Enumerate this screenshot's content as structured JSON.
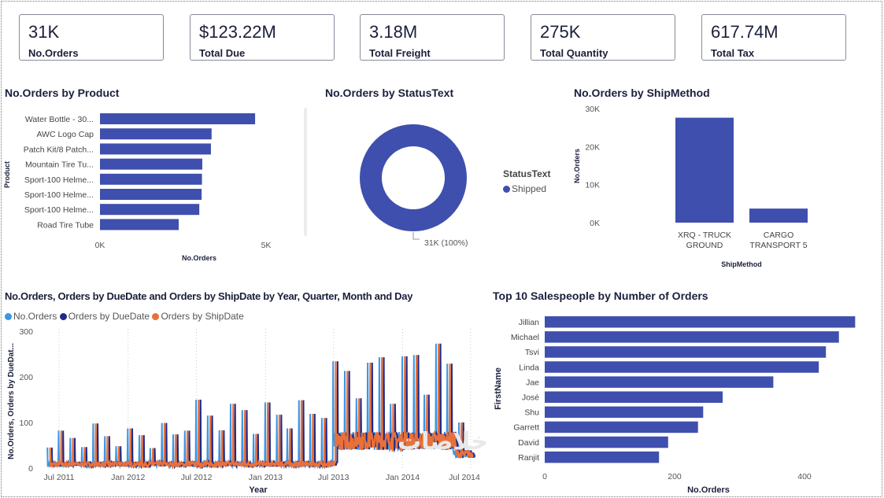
{
  "kpis": [
    {
      "value": "31K",
      "label": "No.Orders"
    },
    {
      "value": "$123.22M",
      "label": "Total Due"
    },
    {
      "value": "3.18M",
      "label": "Total Freight"
    },
    {
      "value": "275K",
      "label": "Total Quantity"
    },
    {
      "value": "617.74M",
      "label": "Total Tax"
    }
  ],
  "colors": {
    "bar": "#3f4fae",
    "no_orders": "#3a96e6",
    "due_date": "#1e2a88",
    "ship_date": "#e8703a",
    "text": "#1b1f3b"
  },
  "watermark": "خلاصات",
  "chart_data": [
    {
      "type": "bar",
      "orientation": "horizontal",
      "title": "No.Orders by Product",
      "xlabel": "No.Orders",
      "ylabel": "Product",
      "categories": [
        "Water Bottle - 30...",
        "AWC Logo Cap",
        "Patch Kit/8 Patch...",
        "Mountain Tire Tu...",
        "Sport-100 Helme...",
        "Sport-100 Helme...",
        "Sport-100 Helme...",
        "Road Tire Tube"
      ],
      "values": [
        4670,
        3360,
        3340,
        3080,
        3070,
        3060,
        2990,
        2370
      ],
      "xlim": [
        0,
        5000
      ],
      "xticks": [
        {
          "v": 0,
          "label": "0K"
        },
        {
          "v": 5000,
          "label": "5K"
        }
      ]
    },
    {
      "type": "pie",
      "donut": true,
      "title": "No.Orders by StatusText",
      "legend_title": "StatusText",
      "slices": [
        {
          "label": "Shipped",
          "value": 31000,
          "data_label": "31K (100%)"
        }
      ]
    },
    {
      "type": "bar",
      "title": "No.Orders by ShipMethod",
      "xlabel": "ShipMethod",
      "ylabel": "No.Orders",
      "categories": [
        [
          "XRQ - TRUCK",
          "GROUND"
        ],
        [
          "CARGO",
          "TRANSPORT 5"
        ]
      ],
      "values": [
        27600,
        3700
      ],
      "ylim": [
        0,
        30000
      ],
      "yticks": [
        {
          "v": 0,
          "label": "0K"
        },
        {
          "v": 10000,
          "label": "10K"
        },
        {
          "v": 20000,
          "label": "20K"
        },
        {
          "v": 30000,
          "label": "30K"
        }
      ]
    },
    {
      "type": "line",
      "title": "No.Orders, Orders by DueDate and Orders by ShipDate by Year, Quarter, Month and Day",
      "xlabel": "Year",
      "ylabel": "No.Orders, Orders by DueDat...",
      "ylim": [
        0,
        300
      ],
      "yticks": [
        0,
        100,
        200,
        300
      ],
      "xticks": [
        "Jul 2011",
        "Jan 2012",
        "Jul 2012",
        "Jan 2013",
        "Jul 2013",
        "Jan 2014",
        "Jul 2014"
      ],
      "series": [
        {
          "name": "No.Orders",
          "offset_days": 0
        },
        {
          "name": "Orders by DueDate",
          "offset_days": 12
        },
        {
          "name": "Orders by ShipDate",
          "offset_days": 7
        }
      ],
      "date_range": [
        "2011-05-31",
        "2014-06-30"
      ],
      "month_end_spikes_start": "2011-05",
      "month_end_spikes": [
        45,
        82,
        66,
        46,
        98,
        70,
        48,
        87,
        72,
        44,
        99,
        74,
        82,
        150,
        115,
        83,
        141,
        127,
        75,
        144,
        117,
        87,
        149,
        119,
        110,
        234,
        213,
        153,
        231,
        243,
        141,
        245,
        248,
        161,
        273,
        229,
        100
      ],
      "daily_baseline": [
        {
          "from": "2011-05-31",
          "to": "2013-06-29",
          "min": 3,
          "max": 14
        },
        {
          "from": "2013-06-30",
          "to": "2014-05-15",
          "min": 40,
          "max": 80
        },
        {
          "from": "2014-05-16",
          "to": "2014-06-30",
          "min": 22,
          "max": 40
        }
      ]
    },
    {
      "type": "bar",
      "orientation": "horizontal",
      "title": "Top 10 Salespeople by Number of Orders",
      "xlabel": "No.Orders",
      "ylabel": "FirstName",
      "categories": [
        "Jillian",
        "Michael",
        "Tsvi",
        "Linda",
        "Jae",
        "José",
        "Shu",
        "Garrett",
        "David",
        "Ranjit"
      ],
      "values": [
        478,
        453,
        433,
        422,
        352,
        274,
        244,
        236,
        190,
        176
      ],
      "xlim": [
        0,
        478
      ],
      "xticks": [
        0,
        200,
        400
      ]
    }
  ]
}
